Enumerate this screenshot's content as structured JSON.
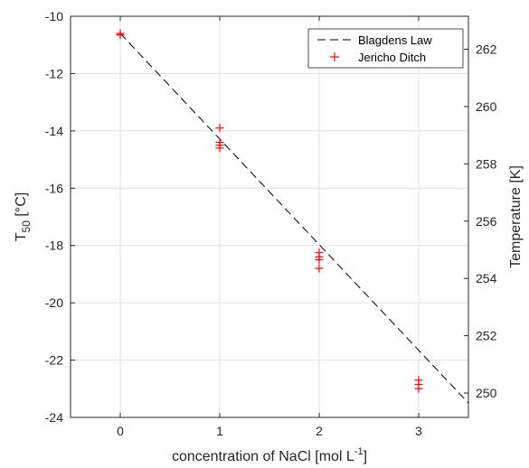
{
  "chart_data": {
    "type": "scatter",
    "xlabel": "concentration of NaCl [mol L",
    "xlabel_sup": "-1",
    "xlabel_end": "]",
    "ylabel_left": "T",
    "ylabel_left_sub": "50",
    "ylabel_left_end": " [°C]",
    "ylabel_right": "Temperature [K]",
    "xlim": [
      -0.5,
      3.5
    ],
    "ylim_left": [
      -24,
      -10
    ],
    "ylim_right": [
      249.15,
      263.15
    ],
    "xticks": [
      0,
      1,
      2,
      3
    ],
    "xtick_labels": [
      "0",
      "1",
      "2",
      "3"
    ],
    "yticks_left": [
      -10,
      -12,
      -14,
      -16,
      -18,
      -20,
      -22,
      -24
    ],
    "ytick_left_labels": [
      "-10",
      "-12",
      "-14",
      "-16",
      "-18",
      "-20",
      "-22",
      "-24"
    ],
    "yticks_right": [
      262,
      260,
      258,
      256,
      254,
      252,
      250
    ],
    "ytick_right_labels": [
      "262",
      "260",
      "258",
      "256",
      "254",
      "252",
      "250"
    ],
    "grid": true,
    "legend_position": "top-right",
    "series": [
      {
        "name": "Blagdens Law",
        "kind": "line",
        "style": "dashed",
        "color": "#000000",
        "x": [
          0,
          3.5
        ],
        "y": [
          -10.6,
          -23.5
        ]
      },
      {
        "name": "Jericho Ditch",
        "kind": "marker",
        "marker": "+",
        "color": "#ff0000",
        "x": [
          0,
          0,
          1,
          1,
          1,
          1,
          2,
          2,
          2,
          2,
          3,
          3,
          3
        ],
        "y": [
          -10.6,
          -10.65,
          -13.9,
          -14.4,
          -14.5,
          -14.6,
          -18.25,
          -18.4,
          -18.5,
          -18.8,
          -22.7,
          -22.85,
          -23.0
        ]
      }
    ]
  }
}
